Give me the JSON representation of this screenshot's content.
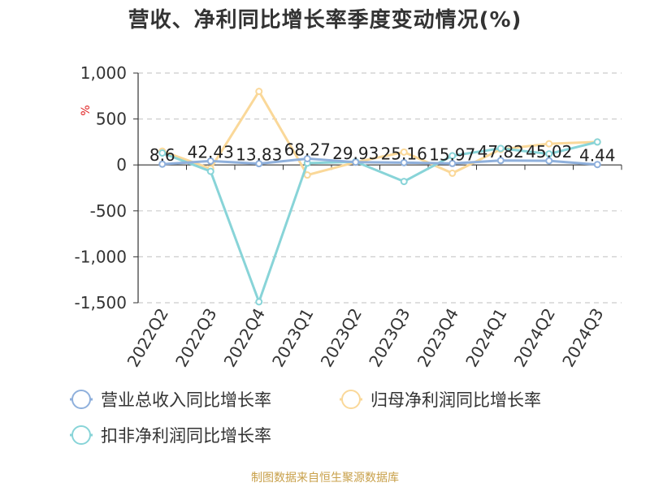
{
  "title": "营收、净利同比增长率季度变动情况(%)",
  "source": "制图数据来自恒生聚源数据库",
  "chart_data": {
    "type": "line",
    "title": "营收、净利同比增长率季度变动情况(%)",
    "unit": "%",
    "categories": [
      "2022Q2",
      "2022Q3",
      "2022Q4",
      "2023Q1",
      "2023Q2",
      "2023Q3",
      "2023Q4",
      "2024Q1",
      "2024Q2",
      "2024Q3"
    ],
    "ylim": [
      -1500,
      1000
    ],
    "yticks": [
      1000,
      500,
      0,
      -500,
      -1000,
      -1500
    ],
    "ytick_labels": [
      "1,000",
      "500",
      "0",
      "-500",
      "-1,000",
      "-1,500"
    ],
    "grid": true,
    "legend_position": "bottom",
    "series": [
      {
        "name": "营业总收入同比增长率",
        "color": "#8fb0dc",
        "values": [
          8.6,
          42.43,
          13.83,
          68.27,
          29.93,
          25.16,
          15.97,
          47.82,
          45.02,
          4.44
        ],
        "labels": [
          "8.6",
          "42.43",
          "13.83",
          "68.27",
          "29.93",
          "25.16",
          "15.97",
          "47.82",
          "45.02",
          "4.44"
        ]
      },
      {
        "name": "归母净利润同比增长率",
        "color": "#fad899",
        "values": [
          150,
          -40,
          800,
          -110,
          30,
          140,
          -90,
          170,
          230,
          250
        ]
      },
      {
        "name": "扣非净利润同比增长率",
        "color": "#88d4d8",
        "values": [
          130,
          -70,
          -1490,
          20,
          35,
          -180,
          100,
          180,
          120,
          250
        ]
      }
    ]
  }
}
